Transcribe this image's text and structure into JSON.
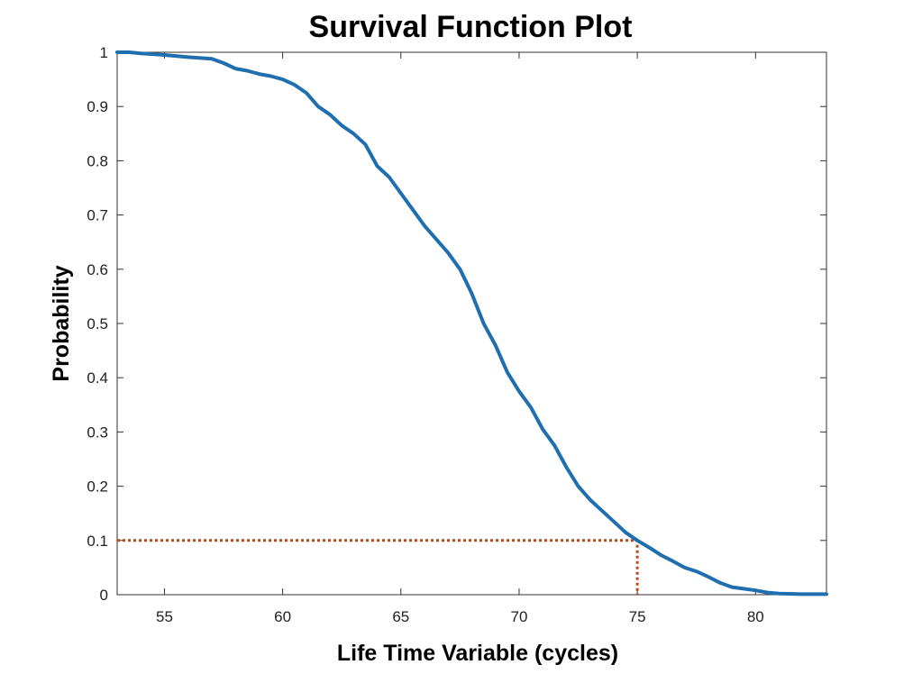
{
  "chart_data": {
    "type": "line",
    "title": "Survival Function Plot",
    "xlabel": "Life Time Variable (cycles)",
    "ylabel": "Probability",
    "xlim": [
      53,
      83
    ],
    "ylim": [
      0,
      1
    ],
    "xticks": [
      55,
      60,
      65,
      70,
      75,
      80
    ],
    "xtick_labels": [
      "55",
      "60",
      "65",
      "70",
      "75",
      "80"
    ],
    "yticks": [
      0,
      0.1,
      0.2,
      0.3,
      0.4,
      0.5,
      0.6,
      0.7,
      0.8,
      0.9,
      1
    ],
    "ytick_labels": [
      "0",
      "0.1",
      "0.2",
      "0.3",
      "0.4",
      "0.5",
      "0.6",
      "0.7",
      "0.8",
      "0.9",
      "1"
    ],
    "grid": false,
    "series": [
      {
        "color": "#1f6fb0",
        "x": [
          53,
          53.5,
          54,
          55,
          56,
          57,
          57.5,
          58,
          58.5,
          59,
          59.5,
          60,
          60.5,
          61,
          61.5,
          62,
          62.5,
          63,
          63.5,
          64,
          64.5,
          65,
          65.5,
          66,
          66.5,
          67,
          67.5,
          68,
          68.5,
          69,
          69.5,
          70,
          70.5,
          71,
          71.5,
          72,
          72.5,
          73,
          73.5,
          74,
          74.5,
          75,
          75.5,
          76,
          76.5,
          77,
          77.5,
          78,
          78.5,
          79,
          79.5,
          80,
          80.5,
          81,
          82,
          83
        ],
        "y": [
          1.0,
          1.0,
          0.998,
          0.995,
          0.991,
          0.988,
          0.98,
          0.97,
          0.966,
          0.96,
          0.956,
          0.95,
          0.94,
          0.925,
          0.9,
          0.885,
          0.865,
          0.85,
          0.83,
          0.79,
          0.77,
          0.74,
          0.71,
          0.68,
          0.655,
          0.63,
          0.6,
          0.555,
          0.5,
          0.46,
          0.41,
          0.375,
          0.345,
          0.305,
          0.275,
          0.235,
          0.2,
          0.175,
          0.155,
          0.135,
          0.115,
          0.1,
          0.087,
          0.073,
          0.062,
          0.05,
          0.043,
          0.033,
          0.022,
          0.014,
          0.011,
          0.008,
          0.004,
          0.002,
          0.001,
          0.001
        ]
      }
    ],
    "reference_lines": [
      {
        "color": "#b54a1a",
        "style": "dotted",
        "points": [
          [
            53,
            0.1
          ],
          [
            75,
            0.1
          ],
          [
            75,
            0
          ]
        ]
      }
    ]
  }
}
